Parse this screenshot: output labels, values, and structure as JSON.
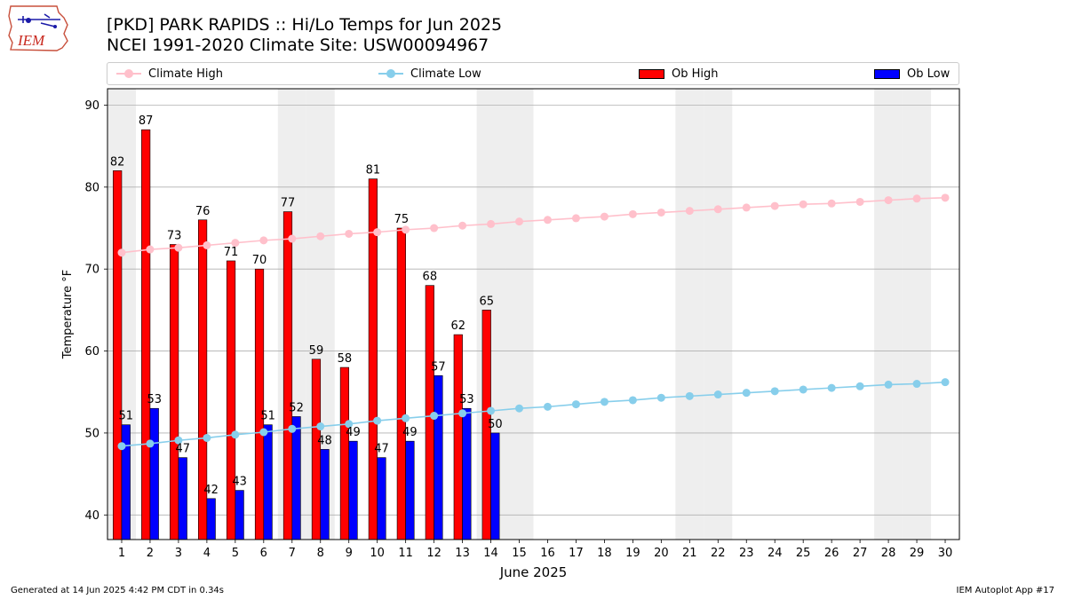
{
  "header": {
    "title_line1": "[PKD] PARK RAPIDS :: Hi/Lo Temps for Jun 2025",
    "title_line2": "NCEI 1991-2020 Climate Site: USW00094967",
    "logo_text": "IEM"
  },
  "legend": {
    "climate_high": "Climate High",
    "climate_low": "Climate Low",
    "ob_high": "Ob High",
    "ob_low": "Ob Low"
  },
  "colors": {
    "climate_high": "#ffc0cb",
    "climate_low": "#87ceeb",
    "ob_high": "#ff0000",
    "ob_low": "#0000ff",
    "weekend_band": "#eeeeee"
  },
  "chart_data": {
    "type": "bar",
    "xlabel": "June 2025",
    "ylabel": "Temperature °F",
    "ylim": [
      37,
      92
    ],
    "yticks": [
      40,
      50,
      60,
      70,
      80,
      90
    ],
    "grid": true,
    "legend_position": "top",
    "days": [
      1,
      2,
      3,
      4,
      5,
      6,
      7,
      8,
      9,
      10,
      11,
      12,
      13,
      14,
      15,
      16,
      17,
      18,
      19,
      20,
      21,
      22,
      23,
      24,
      25,
      26,
      27,
      28,
      29,
      30
    ],
    "weekend_days": [
      1,
      7,
      8,
      14,
      15,
      21,
      22,
      28,
      29
    ],
    "series": [
      {
        "name": "Ob High",
        "kind": "bar",
        "values": [
          82,
          87,
          73,
          76,
          71,
          70,
          77,
          59,
          58,
          81,
          75,
          68,
          62,
          65
        ]
      },
      {
        "name": "Ob Low",
        "kind": "bar",
        "values": [
          51,
          53,
          47,
          42,
          43,
          51,
          52,
          48,
          49,
          47,
          49,
          57,
          53,
          50
        ]
      },
      {
        "name": "Climate High",
        "kind": "line",
        "values": [
          72.0,
          72.4,
          72.6,
          72.9,
          73.2,
          73.5,
          73.7,
          74.0,
          74.3,
          74.5,
          74.8,
          75.0,
          75.3,
          75.5,
          75.8,
          76.0,
          76.2,
          76.4,
          76.7,
          76.9,
          77.1,
          77.3,
          77.5,
          77.7,
          77.9,
          78.0,
          78.2,
          78.4,
          78.6,
          78.7
        ]
      },
      {
        "name": "Climate Low",
        "kind": "line",
        "values": [
          48.4,
          48.7,
          49.1,
          49.4,
          49.8,
          50.1,
          50.5,
          50.8,
          51.1,
          51.5,
          51.8,
          52.1,
          52.4,
          52.7,
          53.0,
          53.2,
          53.5,
          53.8,
          54.0,
          54.3,
          54.5,
          54.7,
          54.9,
          55.1,
          55.3,
          55.5,
          55.7,
          55.9,
          56.0,
          56.2
        ]
      }
    ]
  },
  "footer": {
    "left": "Generated at 14 Jun 2025 4:42 PM CDT in 0.34s",
    "right": "IEM Autoplot App #17"
  }
}
